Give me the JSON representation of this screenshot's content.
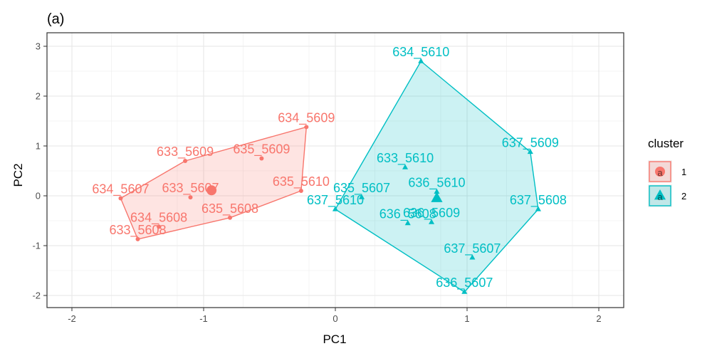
{
  "chart_data": {
    "type": "scatter",
    "title": "(a)",
    "xlabel": "PC1",
    "ylabel": "PC2",
    "xlim": [
      -2.2,
      2.2
    ],
    "ylim": [
      -2.2,
      3.2
    ],
    "xticks": [
      -2,
      -1,
      0,
      1,
      2
    ],
    "yticks": [
      -2,
      -1,
      0,
      1,
      2,
      3
    ],
    "xtick_labels": [
      "-2",
      "-1",
      "0",
      "1",
      "2"
    ],
    "ytick_labels": [
      "-2",
      "-1",
      "0",
      "1",
      "2",
      "3"
    ],
    "grid": true,
    "legend": {
      "title": "cluster",
      "placement": "right",
      "entries": [
        "1",
        "2"
      ],
      "key_glyph": "a"
    },
    "series": [
      {
        "name": "1",
        "color": "#F8766D",
        "marker": "circle",
        "hull": [
          [
            -1.5,
            -0.87
          ],
          [
            -1.63,
            -0.05
          ],
          [
            -1.14,
            0.7
          ],
          [
            -0.22,
            1.38
          ],
          [
            -0.26,
            0.1
          ],
          [
            -0.8,
            -0.44
          ]
        ],
        "centroid": [
          -0.94,
          0.11
        ],
        "points": [
          {
            "label": "634_5609",
            "x": -0.22,
            "y": 1.38
          },
          {
            "label": "633_5609",
            "x": -1.14,
            "y": 0.7
          },
          {
            "label": "635_5609",
            "x": -0.56,
            "y": 0.75
          },
          {
            "label": "635_5610",
            "x": -0.26,
            "y": 0.1
          },
          {
            "label": "634_5607",
            "x": -1.63,
            "y": -0.05
          },
          {
            "label": "633_5607",
            "x": -1.1,
            "y": -0.03
          },
          {
            "label": "634_5608",
            "x": -1.34,
            "y": -0.62
          },
          {
            "label": "633_5608",
            "x": -1.5,
            "y": -0.87
          },
          {
            "label": "635_5608",
            "x": -0.8,
            "y": -0.44
          }
        ]
      },
      {
        "name": "2",
        "color": "#00BFC4",
        "marker": "triangle",
        "hull": [
          [
            0.0,
            -0.27
          ],
          [
            0.65,
            2.7
          ],
          [
            1.48,
            0.88
          ],
          [
            1.54,
            -0.27
          ],
          [
            0.98,
            -1.93
          ]
        ],
        "centroid": [
          0.77,
          -0.05
        ],
        "points": [
          {
            "label": "634_5610",
            "x": 0.65,
            "y": 2.7
          },
          {
            "label": "637_5609",
            "x": 1.48,
            "y": 0.88
          },
          {
            "label": "633_5610",
            "x": 0.53,
            "y": 0.57
          },
          {
            "label": "636_5610",
            "x": 0.77,
            "y": 0.08
          },
          {
            "label": "635_5607",
            "x": 0.2,
            "y": -0.03
          },
          {
            "label": "637_5610",
            "x": 0.0,
            "y": -0.27
          },
          {
            "label": "637_5608",
            "x": 1.54,
            "y": -0.27
          },
          {
            "label": "636_5608",
            "x": 0.55,
            "y": -0.55
          },
          {
            "label": "636_5609",
            "x": 0.73,
            "y": -0.53
          },
          {
            "label": "637_5607",
            "x": 1.04,
            "y": -1.24
          },
          {
            "label": "636_5607",
            "x": 0.98,
            "y": -1.93
          }
        ]
      }
    ]
  }
}
